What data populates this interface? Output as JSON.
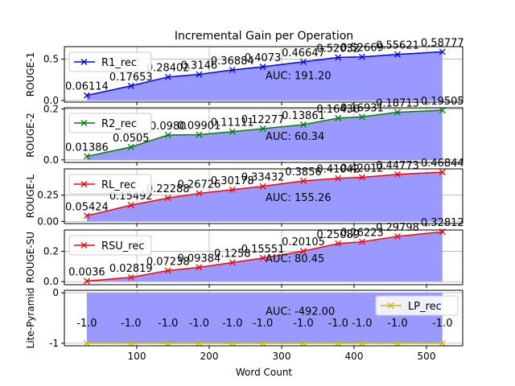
{
  "title": "Incremental Gain per Operation",
  "xlabel": "Word Count",
  "x_ticks": [
    100,
    200,
    300,
    400,
    500
  ],
  "colors": {
    "fill": "#9999ff",
    "grid": "#b0b0b0"
  },
  "chart_data": [
    {
      "type": "line",
      "ylabel": "ROUGE-1",
      "x": [
        31,
        92,
        143,
        186,
        232,
        274,
        330,
        378,
        411,
        460,
        522
      ],
      "series": [
        {
          "name": "R1_rec",
          "color": "#0000ff",
          "marker": "x",
          "values": [
            0.06114,
            0.17653,
            0.28402,
            0.3146,
            0.36884,
            0.4073,
            0.46647,
            0.52032,
            0.52669,
            0.55621,
            0.58777
          ]
        }
      ],
      "data_labels": [
        "0.06114",
        "0.17653",
        "0.28402",
        "0.3146",
        "0.36884",
        "0.4073",
        "0.46647",
        "0.52032",
        "0.52669",
        "0.55621",
        "0.58777"
      ],
      "auc": "AUC: 191.20",
      "ylim": [
        -0.02,
        0.65
      ],
      "yticks": [
        0.0,
        0.5
      ],
      "ytick_labels": [
        "0.0",
        "0.5"
      ]
    },
    {
      "type": "line",
      "ylabel": "ROUGE-2",
      "x": [
        31,
        92,
        143,
        186,
        232,
        274,
        330,
        378,
        411,
        460,
        522
      ],
      "series": [
        {
          "name": "R2_rec",
          "color": "#008000",
          "marker": "x",
          "values": [
            0.01386,
            0.0505,
            0.098,
            0.09901,
            0.11111,
            0.12277,
            0.13861,
            0.16436,
            0.16931,
            0.18713,
            0.19505
          ]
        }
      ],
      "data_labels": [
        "0.01386",
        "0.0505",
        "0.0980",
        "0.09901",
        "0.11111",
        "0.12277",
        "0.13861",
        "0.16436",
        "0.16931",
        "0.18713",
        "0.19505"
      ],
      "auc": "AUC: 60.34",
      "ylim": [
        -0.01,
        0.205
      ],
      "yticks": [
        0.0,
        0.2
      ],
      "ytick_labels": [
        "0.0",
        "0.2"
      ]
    },
    {
      "type": "line",
      "ylabel": "ROUGE-L",
      "x": [
        31,
        92,
        143,
        186,
        232,
        274,
        330,
        378,
        411,
        460,
        522
      ],
      "series": [
        {
          "name": "RL_rec",
          "color": "#ff0000",
          "marker": "x",
          "values": [
            0.05424,
            0.15492,
            0.22288,
            0.26726,
            0.30178,
            0.33432,
            0.3856,
            0.41042,
            0.42012,
            0.44773,
            0.46844
          ]
        }
      ],
      "data_labels": [
        "0.05424",
        "0.15492",
        "0.22288",
        "0.26726",
        "0.30178",
        "0.33432",
        "0.3856",
        "0.41042",
        "0.42012",
        "0.44773",
        "0.46844"
      ],
      "auc": "AUC: 155.26",
      "ylim": [
        -0.02,
        0.5
      ],
      "yticks": [
        0.0,
        0.25
      ],
      "ytick_labels": [
        "0.00",
        "0.25"
      ]
    },
    {
      "type": "line",
      "ylabel": "ROUGE-SU",
      "x": [
        31,
        92,
        143,
        186,
        232,
        274,
        330,
        378,
        411,
        460,
        522
      ],
      "series": [
        {
          "name": "RSU_rec",
          "color": "#ff0000",
          "marker": "x",
          "values": [
            0.0036,
            0.02819,
            0.07238,
            0.09384,
            0.1258,
            0.15551,
            0.20105,
            0.25089,
            0.26223,
            0.29798,
            0.32812
          ]
        }
      ],
      "data_labels": [
        "0.0036",
        "0.02819",
        "0.07238",
        "0.09384",
        "0.1258",
        "0.15551",
        "0.20105",
        "0.25089",
        "0.26223",
        "0.29798",
        "0.32812"
      ],
      "auc": "AUC: 80.45",
      "ylim": [
        -0.02,
        0.34
      ],
      "yticks": [
        0.0,
        0.2
      ],
      "ytick_labels": [
        "0.0",
        "0.2"
      ]
    },
    {
      "type": "line",
      "ylabel": "Lite-Pyramid",
      "x": [
        31,
        92,
        143,
        186,
        232,
        274,
        330,
        378,
        411,
        460,
        522
      ],
      "series": [
        {
          "name": "LP_rec",
          "color": "#bfbf00",
          "marker": "x",
          "values": [
            -1.0,
            -1.0,
            -1.0,
            -1.0,
            -1.0,
            -1.0,
            -1.0,
            -1.0,
            -1.0,
            -1.0,
            -1.0
          ]
        }
      ],
      "data_labels": [
        "-1.0",
        "-1.0",
        "-1.0",
        "-1.0",
        "-1.0",
        "-1.0",
        "-1.0",
        "-1.0",
        "-1.0",
        "-1.0",
        "-1.0"
      ],
      "auc": "AUC: -492.00",
      "ylim": [
        -1.05,
        0.05
      ],
      "yticks": [
        0,
        -1
      ],
      "ytick_labels": [
        "0",
        "-1"
      ],
      "legend_loc": "right",
      "labels_below": true
    }
  ]
}
